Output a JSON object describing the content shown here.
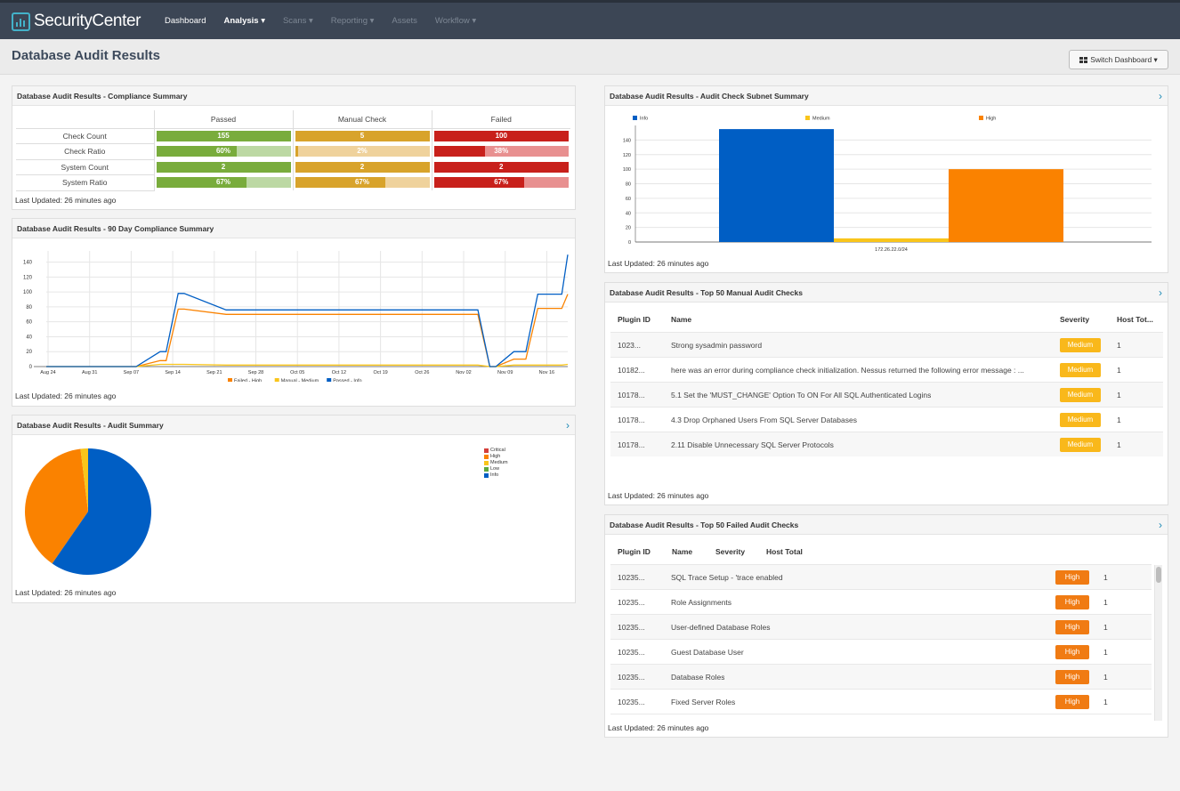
{
  "app": {
    "logo": "SecurityCenter"
  },
  "nav": [
    "Dashboard",
    "Analysis ▾",
    "Scans ▾",
    "Reporting ▾",
    "Assets",
    "Workflow ▾"
  ],
  "page": {
    "title": "Database Audit Results",
    "switch_label": "Switch Dashboard ▾"
  },
  "colors": {
    "passed": "#79ac3c",
    "manual": "#d8a32b",
    "failed": "#c8201b",
    "info": "#005ec4",
    "medium": "#f9c51b",
    "high": "#fa8200",
    "critical": "#d43f3a",
    "low": "#5fa93d"
  },
  "compliance": {
    "title": "Database Audit Results - Compliance Summary",
    "headers": [
      "Passed",
      "Manual Check",
      "Failed"
    ],
    "rows": [
      {
        "label": "Check Count",
        "cells": [
          "155",
          "5",
          "100"
        ]
      },
      {
        "label": "Check Ratio",
        "cells": [
          "60%",
          "2%",
          "38%"
        ]
      },
      {
        "label": "System Count",
        "cells": [
          "2",
          "2",
          "2"
        ]
      },
      {
        "label": "System Ratio",
        "cells": [
          "67%",
          "67%",
          "67%"
        ]
      }
    ],
    "updated": "Last Updated: 26 minutes ago"
  },
  "trend": {
    "title": "Database Audit Results - 90 Day Compliance Summary",
    "updated": "Last Updated: 26 minutes ago",
    "chart_data": {
      "type": "line",
      "y_ticks": [
        0,
        20,
        40,
        60,
        80,
        100,
        120,
        140
      ],
      "ylim": [
        0,
        155
      ],
      "x_ticks": [
        "Aug 24",
        "Aug 31",
        "Sep 07",
        "Sep 14",
        "Sep 21",
        "Sep 28",
        "Oct 05",
        "Oct 12",
        "Oct 19",
        "Oct 26",
        "Nov 02",
        "Nov 09",
        "Nov 16"
      ],
      "x": [
        0,
        10,
        13,
        15,
        19,
        20,
        22,
        23,
        30,
        35,
        40,
        50,
        60,
        66,
        70,
        71,
        72,
        74,
        75,
        78,
        80,
        82,
        86,
        87
      ],
      "series": [
        {
          "name": "Failed - High",
          "values": [
            0,
            0,
            0,
            0,
            8,
            8,
            77,
            77,
            70,
            70,
            70,
            70,
            70,
            70,
            70,
            70,
            70,
            0,
            0,
            10,
            10,
            78,
            78,
            97
          ]
        },
        {
          "name": "Manual - Medium",
          "values": [
            0,
            0,
            0,
            0,
            3,
            3,
            3,
            3,
            2,
            2,
            2,
            2,
            2,
            2,
            2,
            2,
            2,
            0,
            0,
            2,
            2,
            2,
            2,
            3
          ]
        },
        {
          "name": "Passed - Info",
          "values": [
            0,
            0,
            0,
            0,
            20,
            20,
            98,
            98,
            76,
            76,
            76,
            76,
            76,
            76,
            76,
            76,
            76,
            0,
            0,
            20,
            20,
            97,
            97,
            150
          ]
        }
      ]
    }
  },
  "audit_summary": {
    "title": "Database Audit Results - Audit Summary",
    "updated": "Last Updated: 26 minutes ago",
    "chart_data": {
      "type": "pie",
      "labels": [
        "Critical",
        "High",
        "Medium",
        "Low",
        "Info"
      ],
      "values": [
        0,
        100,
        5,
        0,
        155
      ]
    }
  },
  "subnet": {
    "title": "Database Audit Results - Audit Check Subnet Summary",
    "updated": "Last Updated: 26 minutes ago",
    "chart_data": {
      "type": "bar",
      "categories": [
        "172.26.22.0/24"
      ],
      "series": [
        {
          "name": "Info",
          "values": [
            155
          ]
        },
        {
          "name": "Medium",
          "values": [
            5
          ]
        },
        {
          "name": "High",
          "values": [
            100
          ]
        }
      ],
      "y_ticks": [
        0,
        20,
        40,
        60,
        80,
        100,
        120,
        140
      ],
      "ylim": [
        0,
        160
      ]
    }
  },
  "manual_checks": {
    "title": "Database Audit Results - Top 50 Manual Audit Checks",
    "headers": {
      "plugin": "Plugin ID",
      "name": "Name",
      "severity": "Severity",
      "host": "Host Tot..."
    },
    "rows": [
      {
        "plugin": "1023...",
        "name": "Strong sysadmin password",
        "severity": "Medium",
        "host": "1"
      },
      {
        "plugin": "10182...",
        "name": "here was an error during compliance check initialization. Nessus returned the following error message : ...",
        "severity": "Medium",
        "host": "1"
      },
      {
        "plugin": "10178...",
        "name": "5.1 Set the 'MUST_CHANGE' Option To ON For All SQL Authenticated Logins",
        "severity": "Medium",
        "host": "1"
      },
      {
        "plugin": "10178...",
        "name": "4.3 Drop Orphaned Users From SQL Server Databases",
        "severity": "Medium",
        "host": "1"
      },
      {
        "plugin": "10178...",
        "name": "2.11 Disable Unnecessary SQL Server Protocols",
        "severity": "Medium",
        "host": "1"
      }
    ],
    "updated": "Last Updated: 26 minutes ago"
  },
  "failed_checks": {
    "title": "Database Audit Results - Top 50 Failed Audit Checks",
    "headers": {
      "plugin": "Plugin ID",
      "name": "Name",
      "severity": "Severity",
      "host": "Host Total"
    },
    "rows": [
      {
        "plugin": "10235...",
        "name": "SQL Trace Setup - 'trace enabled",
        "severity": "High",
        "host": "1"
      },
      {
        "plugin": "10235...",
        "name": "Role Assignments",
        "severity": "High",
        "host": "1"
      },
      {
        "plugin": "10235...",
        "name": "User-defined Database Roles",
        "severity": "High",
        "host": "1"
      },
      {
        "plugin": "10235...",
        "name": "Guest Database User",
        "severity": "High",
        "host": "1"
      },
      {
        "plugin": "10235...",
        "name": "Database Roles",
        "severity": "High",
        "host": "1"
      },
      {
        "plugin": "10235...",
        "name": "Fixed Server Roles",
        "severity": "High",
        "host": "1"
      }
    ],
    "updated": "Last Updated: 26 minutes ago"
  }
}
